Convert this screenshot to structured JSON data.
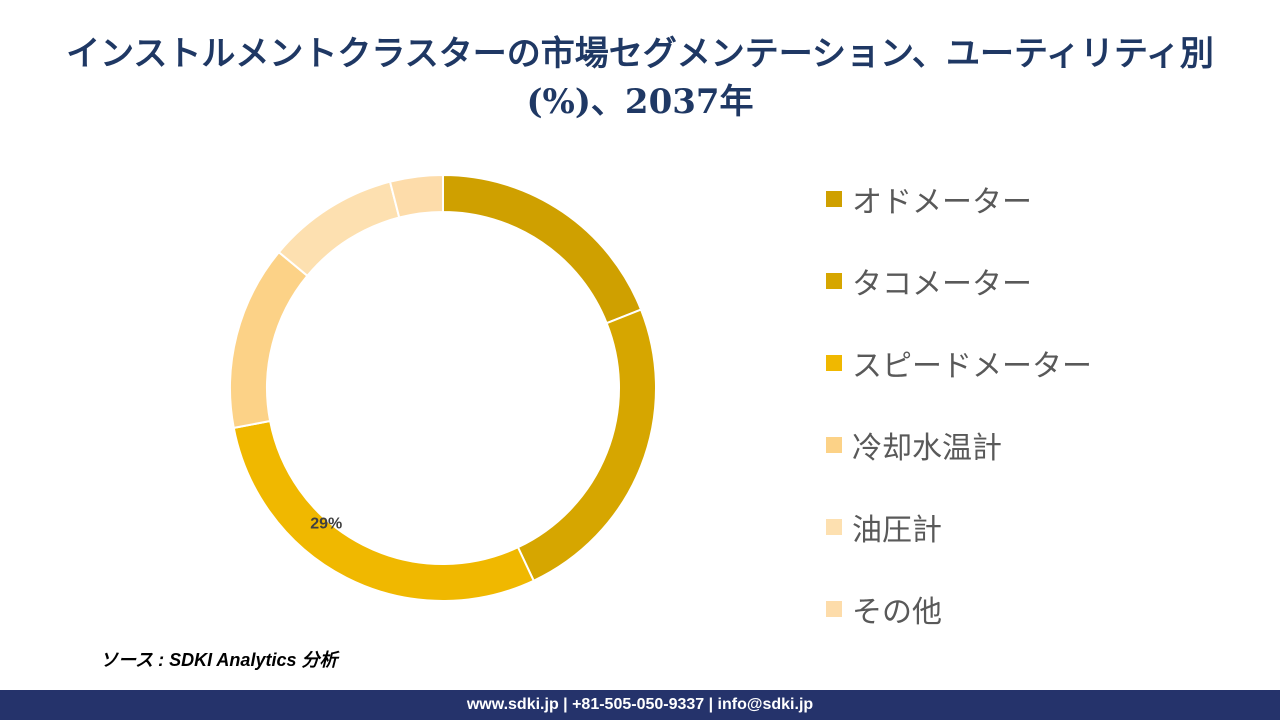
{
  "title": "インストルメントクラスターの市場セグメンテーション、ユーティリティ別(%)、2037年",
  "chart_data": {
    "type": "donut",
    "series": [
      {
        "name": "オドメーター",
        "value": 19,
        "color": "#cfa000"
      },
      {
        "name": "タコメーター",
        "value": 24,
        "color": "#d6a600"
      },
      {
        "name": "スピードメーター",
        "value": 29,
        "color": "#f0b800",
        "label": "29%"
      },
      {
        "name": "冷却水温計",
        "value": 14,
        "color": "#fcd287"
      },
      {
        "name": "油圧計",
        "value": 10,
        "color": "#fde0b0"
      },
      {
        "name": "その他",
        "value": 4,
        "color": "#fddcaa"
      }
    ]
  },
  "source": "ソース : SDKI Analytics 分析",
  "footer": "www.sdki.jp | +81-505-050-9337 | info@sdki.jp"
}
